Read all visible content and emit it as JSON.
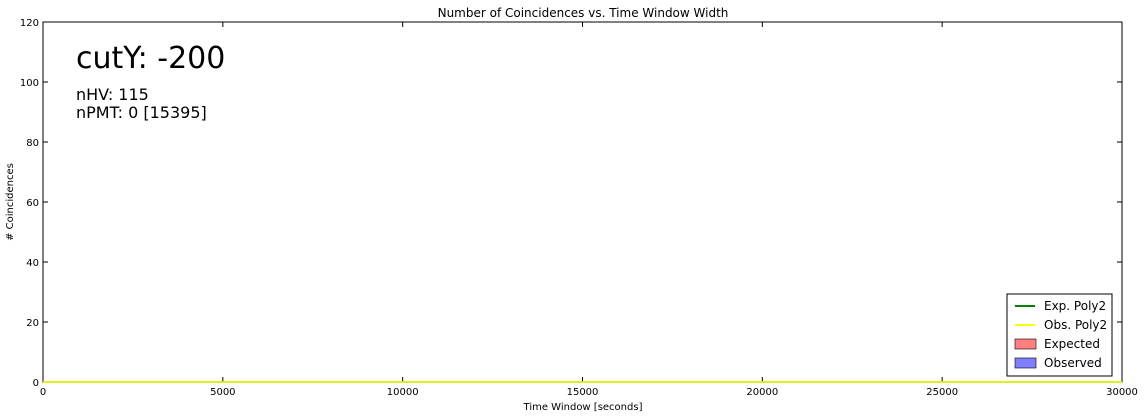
{
  "chart_data": {
    "type": "line",
    "title": "Number of Coincidences vs. Time Window Width",
    "xlabel": "Time Window [seconds]",
    "ylabel": "# Coincidences",
    "xlim": [
      0,
      30000
    ],
    "ylim": [
      0,
      120
    ],
    "xticks": [
      0,
      5000,
      10000,
      15000,
      20000,
      25000,
      30000
    ],
    "yticks": [
      0,
      20,
      40,
      60,
      80,
      100,
      120
    ],
    "grid": false,
    "legend_position": "bottom-right",
    "annotations": {
      "main": "cutY: -200",
      "line1": "nHV: 115",
      "line2": "nPMT: 0 [15395]"
    },
    "series": [
      {
        "name": "Exp. Poly2",
        "kind": "line",
        "color": "#008000",
        "x": [
          0,
          30000
        ],
        "y": [
          0,
          0
        ]
      },
      {
        "name": "Obs. Poly2",
        "kind": "line",
        "color": "#ffff00",
        "x": [
          0,
          30000
        ],
        "y": [
          0,
          0
        ]
      },
      {
        "name": "Expected",
        "kind": "bar",
        "color": "#ff7f7f",
        "values": []
      },
      {
        "name": "Observed",
        "kind": "bar",
        "color": "#7f7fff",
        "values": []
      }
    ]
  }
}
